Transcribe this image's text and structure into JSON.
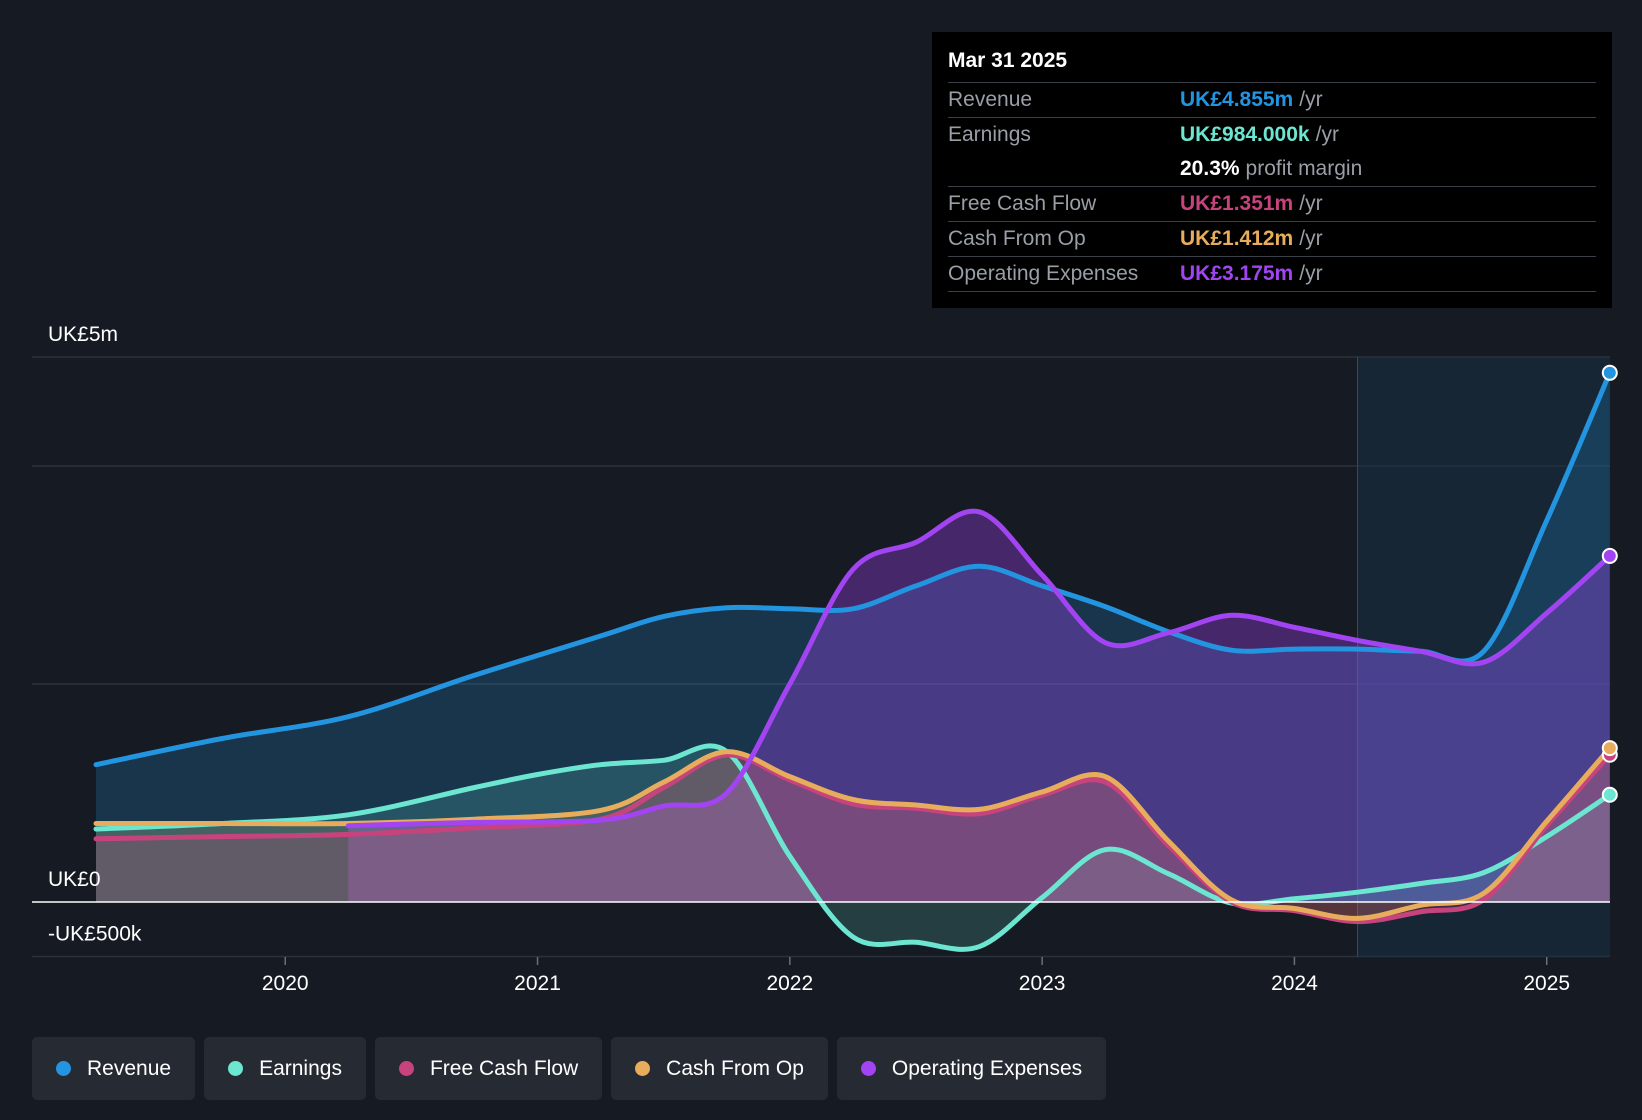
{
  "colors": {
    "revenue": "#2394df",
    "earnings": "#6ce6d1",
    "fcf": "#c7437d",
    "cfo": "#e8ad5c",
    "opex": "#a244f1",
    "background": "#151a23"
  },
  "tooltip": {
    "date": "Mar 31 2025",
    "rows": [
      {
        "label": "Revenue",
        "value": "UK£4.855m",
        "unit": "/yr",
        "color": "#2394df"
      },
      {
        "label": "Earnings",
        "value": "UK£984.000k",
        "unit": "/yr",
        "color": "#6ce6d1"
      },
      {
        "label": "",
        "value": "20.3%",
        "unit": "profit margin",
        "color": "#ffffff"
      },
      {
        "label": "Free Cash Flow",
        "value": "UK£1.351m",
        "unit": "/yr",
        "color": "#c7437d"
      },
      {
        "label": "Cash From Op",
        "value": "UK£1.412m",
        "unit": "/yr",
        "color": "#e8ad5c"
      },
      {
        "label": "Operating Expenses",
        "value": "UK£3.175m",
        "unit": "/yr",
        "color": "#a244f1"
      }
    ]
  },
  "legend": [
    {
      "label": "Revenue",
      "color": "#2394df"
    },
    {
      "label": "Earnings",
      "color": "#6ce6d1"
    },
    {
      "label": "Free Cash Flow",
      "color": "#c7437d"
    },
    {
      "label": "Cash From Op",
      "color": "#e8ad5c"
    },
    {
      "label": "Operating Expenses",
      "color": "#a244f1"
    }
  ],
  "chart_data": {
    "type": "area",
    "title": "",
    "y_unit": "UK£ thousands",
    "ylim": [
      -500,
      5000
    ],
    "x_range": [
      2019.25,
      2025.25
    ],
    "y_tick_labels": [
      {
        "value": 5000,
        "label": "UK£5m"
      },
      {
        "value": 0,
        "label": "UK£0"
      },
      {
        "value": -500,
        "label": "-UK£500k"
      }
    ],
    "gridlines": [
      5000,
      4000,
      2000,
      0,
      -500
    ],
    "x_ticks": [
      2020,
      2021,
      2022,
      2023,
      2024,
      2025
    ],
    "x_tick_labels": [
      "2020",
      "2021",
      "2022",
      "2023",
      "2024",
      "2025"
    ],
    "highlight_from": 2024.25,
    "series": [
      {
        "name": "Revenue",
        "key": "revenue",
        "x": [
          2019.25,
          2019.75,
          2020.25,
          2020.75,
          2021.25,
          2021.5,
          2021.75,
          2022.0,
          2022.25,
          2022.5,
          2022.75,
          2023.0,
          2023.25,
          2023.5,
          2023.75,
          2024.0,
          2024.25,
          2024.5,
          2024.75,
          2025.0,
          2025.25
        ],
        "y": [
          1260,
          1500,
          1700,
          2080,
          2440,
          2620,
          2700,
          2690,
          2690,
          2900,
          3080,
          2900,
          2710,
          2480,
          2310,
          2320,
          2320,
          2300,
          2300,
          3500,
          4855
        ]
      },
      {
        "name": "Earnings",
        "key": "earnings",
        "x": [
          2019.25,
          2019.75,
          2020.25,
          2020.75,
          2021.0,
          2021.25,
          2021.5,
          2021.75,
          2022.0,
          2022.25,
          2022.5,
          2022.75,
          2023.0,
          2023.25,
          2023.5,
          2023.75,
          2024.0,
          2024.25,
          2024.5,
          2024.75,
          2025.0,
          2025.25
        ],
        "y": [
          670,
          720,
          800,
          1050,
          1170,
          1260,
          1300,
          1380,
          420,
          -320,
          -370,
          -410,
          40,
          480,
          260,
          -10,
          30,
          90,
          170,
          270,
          600,
          984
        ]
      },
      {
        "name": "Free Cash Flow",
        "key": "fcf",
        "x": [
          2019.25,
          2019.75,
          2020.25,
          2020.75,
          2021.25,
          2021.5,
          2021.75,
          2022.0,
          2022.25,
          2022.5,
          2022.75,
          2023.0,
          2023.25,
          2023.5,
          2023.75,
          2024.0,
          2024.25,
          2024.5,
          2024.75,
          2025.0,
          2025.25
        ],
        "y": [
          580,
          600,
          620,
          680,
          760,
          1050,
          1350,
          1120,
          900,
          860,
          810,
          980,
          1100,
          520,
          0,
          -80,
          -180,
          -90,
          20,
          700,
          1351
        ]
      },
      {
        "name": "Cash From Op",
        "key": "cfo",
        "x": [
          2019.25,
          2019.75,
          2020.25,
          2020.75,
          2021.25,
          2021.5,
          2021.75,
          2022.0,
          2022.25,
          2022.5,
          2022.75,
          2023.0,
          2023.25,
          2023.5,
          2023.75,
          2024.0,
          2024.25,
          2024.5,
          2024.75,
          2025.0,
          2025.25
        ],
        "y": [
          720,
          720,
          720,
          760,
          840,
          1100,
          1380,
          1150,
          940,
          890,
          850,
          1010,
          1150,
          560,
          20,
          -60,
          -150,
          -30,
          80,
          740,
          1412
        ]
      },
      {
        "name": "Operating Expenses",
        "key": "opex",
        "x": [
          2020.25,
          2020.75,
          2021.25,
          2021.5,
          2021.75,
          2022.0,
          2022.25,
          2022.5,
          2022.75,
          2023.0,
          2023.25,
          2023.5,
          2023.75,
          2024.0,
          2024.25,
          2024.5,
          2024.75,
          2025.0,
          2025.25
        ],
        "y": [
          700,
          730,
          750,
          880,
          1000,
          2000,
          3050,
          3300,
          3580,
          3000,
          2380,
          2470,
          2630,
          2520,
          2400,
          2300,
          2200,
          2650,
          3175
        ]
      }
    ]
  }
}
